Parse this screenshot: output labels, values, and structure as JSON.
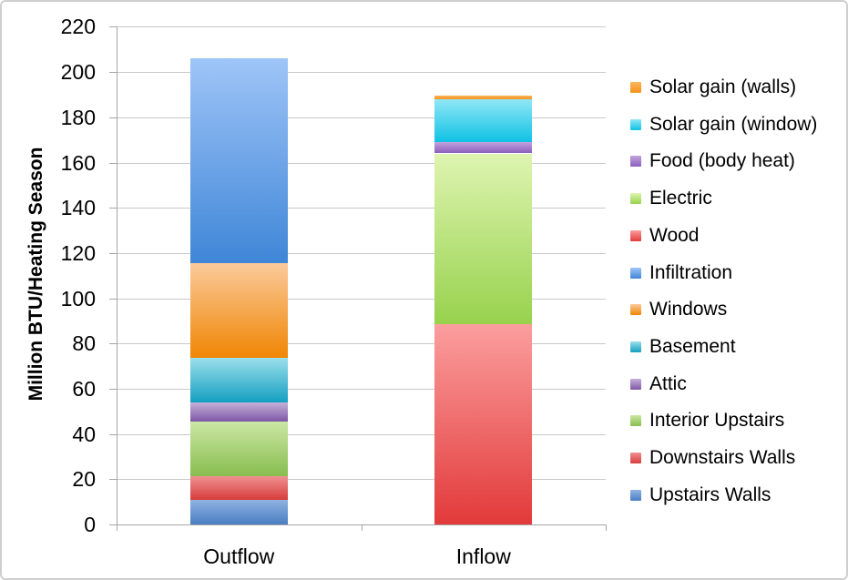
{
  "chart_data": {
    "type": "bar",
    "stacked": true,
    "title": "",
    "xlabel": "",
    "ylabel": "Million BTU/Heating Season",
    "ylim": [
      0,
      220
    ],
    "ytick_step": 20,
    "ytick_labels": [
      "0",
      "20",
      "40",
      "60",
      "80",
      "100",
      "120",
      "140",
      "160",
      "180",
      "200",
      "220"
    ],
    "grid": true,
    "legend_position": "right",
    "background": "#ffffff",
    "border_color": "#cfcfcf",
    "grid_color": "#c9c9c9",
    "axis_color": "#a6a6a6",
    "text_color": "#000000",
    "categories": [
      "Outflow",
      "Inflow"
    ],
    "series": [
      {
        "name": "Upstairs Walls",
        "values": [
          11,
          0
        ],
        "color_top": "#8FB3E2",
        "color_bottom": "#4A7EC2"
      },
      {
        "name": "Downstairs Walls",
        "values": [
          10.5,
          0
        ],
        "color_top": "#F09191",
        "color_bottom": "#D83C3C"
      },
      {
        "name": "Interior Upstairs",
        "values": [
          24,
          0
        ],
        "color_top": "#CBE7A4",
        "color_bottom": "#88BD4F"
      },
      {
        "name": "Attic",
        "values": [
          8.5,
          0
        ],
        "color_top": "#C5B0D9",
        "color_bottom": "#7D58A6"
      },
      {
        "name": "Basement",
        "values": [
          19.5,
          0
        ],
        "color_top": "#9BDFEC",
        "color_bottom": "#149FC1"
      },
      {
        "name": "Windows",
        "values": [
          42,
          0
        ],
        "color_top": "#FBCA9B",
        "color_bottom": "#F08604"
      },
      {
        "name": "Infiltration",
        "values": [
          90.5,
          0
        ],
        "color_top": "#9FC5F8",
        "color_bottom": "#3F86D7"
      },
      {
        "name": "Wood",
        "values": [
          0,
          88.5
        ],
        "color_top": "#FB9E9E",
        "color_bottom": "#E23A3A"
      },
      {
        "name": "Electric",
        "values": [
          0,
          75.5
        ],
        "color_top": "#DEF4B0",
        "color_bottom": "#97D24D"
      },
      {
        "name": "Food (body heat)",
        "values": [
          0,
          5
        ],
        "color_top": "#C2A3DD",
        "color_bottom": "#8C5EBD"
      },
      {
        "name": "Solar gain (window)",
        "values": [
          0,
          19
        ],
        "color_top": "#90E7F5",
        "color_bottom": "#0FC2E5"
      },
      {
        "name": "Solar gain (walls)",
        "values": [
          0,
          1.5
        ],
        "color_top": "#FBB45C",
        "color_bottom": "#F5941B"
      }
    ]
  }
}
